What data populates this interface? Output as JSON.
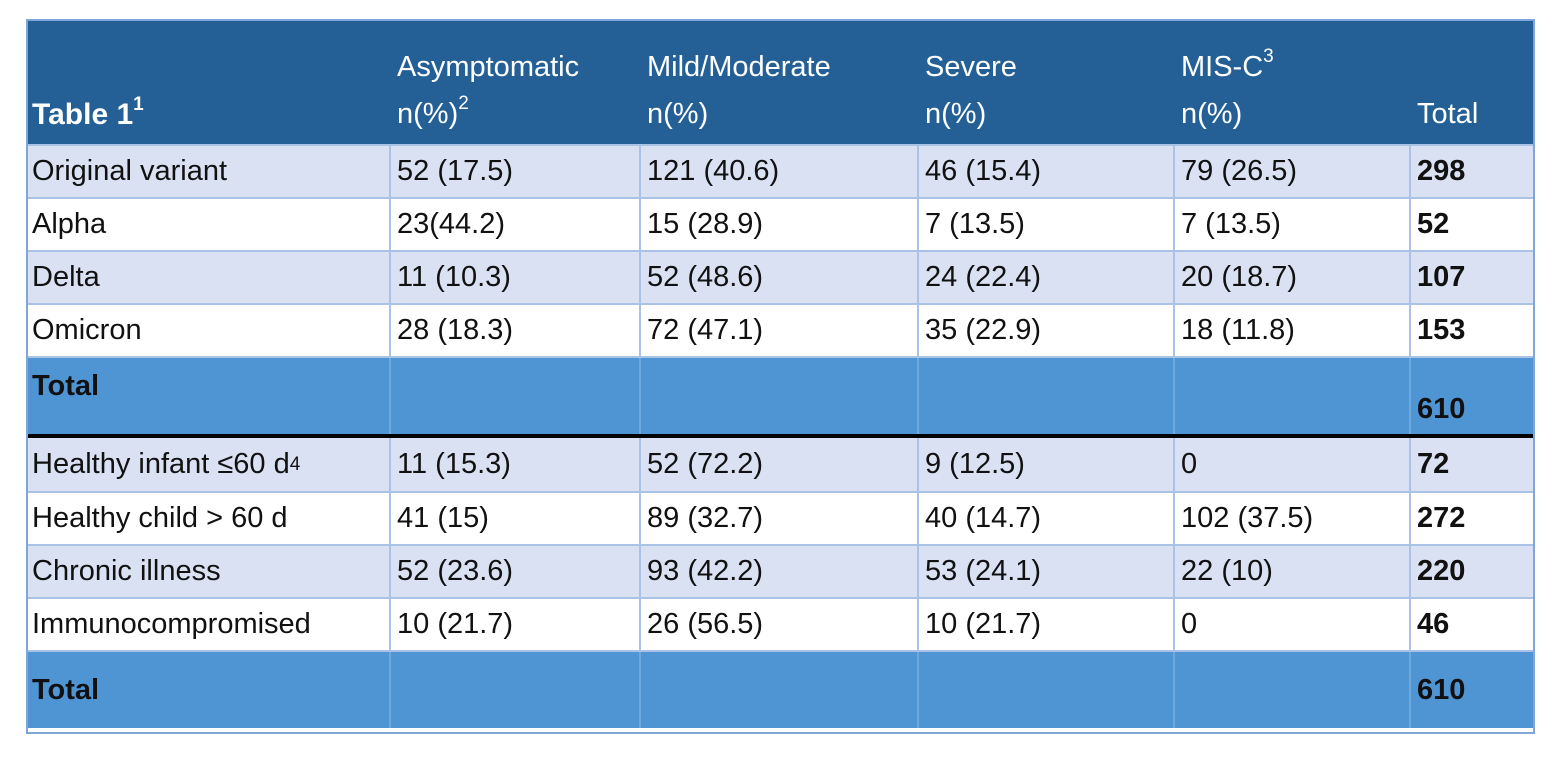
{
  "colors": {
    "header_bg": "#245f96",
    "row_odd": "#d9e1f3",
    "row_even": "#ffffff",
    "total_bg": "#4f95d4",
    "divider": "#000000"
  },
  "header": {
    "title": "Table 1",
    "title_sup": "1",
    "asymptomatic": "Asymptomatic",
    "asymptomatic_sub": "n(%)",
    "asymptomatic_sup": "2",
    "mild": "Mild/Moderate",
    "mild_sub": "n(%)",
    "severe": "Severe",
    "severe_sub": "n(%)",
    "misc": "MIS-C",
    "misc_sup": "3",
    "misc_sub": "n(%)",
    "total": "Total"
  },
  "variants": [
    {
      "label": "Original variant",
      "asym": "52 (17.5)",
      "mild": "121 (40.6)",
      "severe": "46 (15.4)",
      "misc": "79 (26.5)",
      "total": "298"
    },
    {
      "label": "Alpha",
      "asym": "23(44.2)",
      "mild": "15 (28.9)",
      "severe": "7 (13.5)",
      "misc": "7 (13.5)",
      "total": "52"
    },
    {
      "label": "Delta",
      "asym": "11 (10.3)",
      "mild": "52 (48.6)",
      "severe": "24 (22.4)",
      "misc": "20 (18.7)",
      "total": "107"
    },
    {
      "label": "Omicron",
      "asym": "28 (18.3)",
      "mild": "72 (47.1)",
      "severe": "35 (22.9)",
      "misc": "18 (11.8)",
      "total": "153"
    }
  ],
  "variants_total": {
    "label": "Total",
    "total": "610"
  },
  "groups": [
    {
      "label": "Healthy infant ≤60 d",
      "label_sup": "4",
      "asym": "11 (15.3)",
      "mild": "52 (72.2)",
      "severe": "9 (12.5)",
      "misc": "0",
      "total": "72"
    },
    {
      "label": "Healthy child > 60 d",
      "asym": "41 (15)",
      "mild": "89 (32.7)",
      "severe": "40 (14.7)",
      "misc": "102 (37.5)",
      "total": "272"
    },
    {
      "label": "Chronic illness",
      "asym": "52 (23.6)",
      "mild": "93 (42.2)",
      "severe": "53 (24.1)",
      "misc": "22 (10)",
      "total": "220"
    },
    {
      "label": "Immunocompromised",
      "asym": "10 (21.7)",
      "mild": "26 (56.5)",
      "severe": "10 (21.7)",
      "misc": "0",
      "total": "46"
    }
  ],
  "groups_total": {
    "label": "Total",
    "total": "610"
  }
}
